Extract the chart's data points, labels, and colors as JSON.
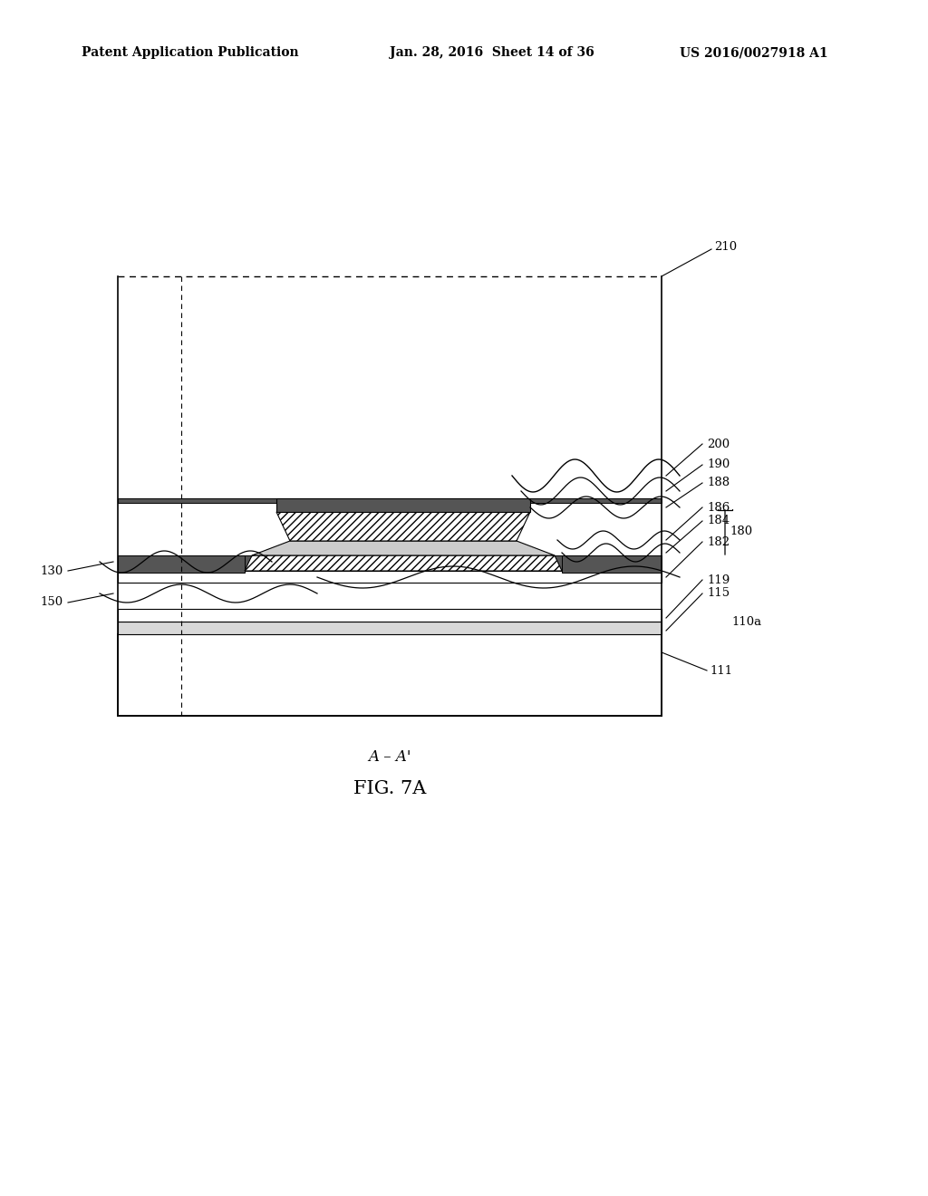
{
  "title": "FIG. 7A",
  "subtitle": "A – A'",
  "header_left": "Patent Application Publication",
  "header_mid": "Jan. 28, 2016  Sheet 14 of 36",
  "header_right": "US 2016/0027918 A1",
  "bg_color": "#ffffff",
  "line_color": "#000000",
  "fig_caption": "FIG. 7A"
}
